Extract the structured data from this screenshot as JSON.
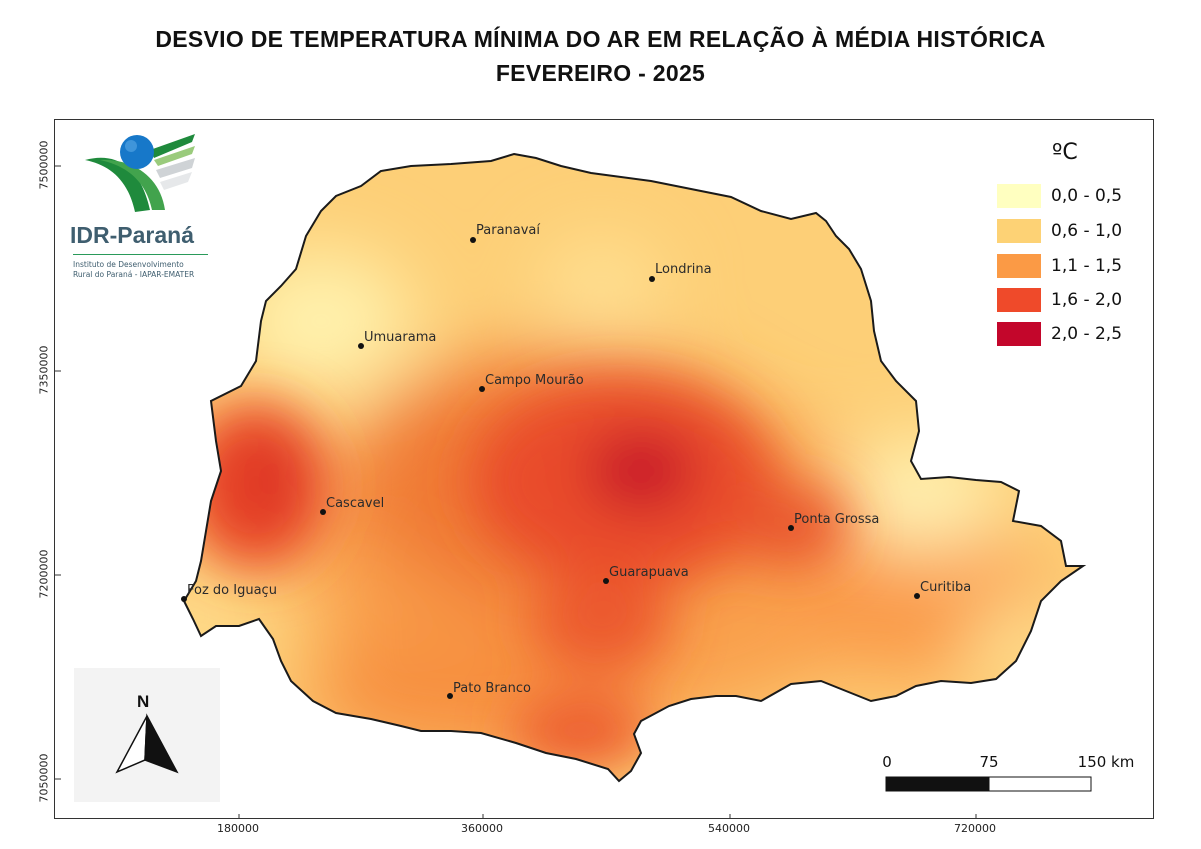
{
  "title": {
    "line1": "DESVIO DE TEMPERATURA MÍNIMA DO AR EM RELAÇÃO À MÉDIA HISTÓRICA",
    "line2": "FEVEREIRO - 2025"
  },
  "logo": {
    "name": "IDR-Paraná",
    "subtitle_line1": "Instituto de Desenvolvimento",
    "subtitle_line2": "Rural do Paraná - IAPAR-EMATER"
  },
  "axes": {
    "y_ticks": [
      "7500000",
      "7350000",
      "7200000",
      "7050000"
    ],
    "x_ticks": [
      "180000",
      "360000",
      "540000",
      "720000"
    ]
  },
  "legend": {
    "title": "ºC",
    "items": [
      {
        "label": "0,0 - 0,5",
        "color": "#ffffc0"
      },
      {
        "label": "0,6 - 1,0",
        "color": "#fdd275"
      },
      {
        "label": "1,1 - 1,5",
        "color": "#fb9a45"
      },
      {
        "label": "1,6 - 2,0",
        "color": "#ef4a2a"
      },
      {
        "label": "2,0 - 2,5",
        "color": "#c3062b"
      }
    ]
  },
  "cities": [
    {
      "name": "Paranavaí"
    },
    {
      "name": "Londrina"
    },
    {
      "name": "Umuarama"
    },
    {
      "name": "Campo Mourão"
    },
    {
      "name": "Cascavel"
    },
    {
      "name": "Ponta Grossa"
    },
    {
      "name": "Guarapuava"
    },
    {
      "name": "Foz do Iguaçu"
    },
    {
      "name": "Curitiba"
    },
    {
      "name": "Pato Branco"
    }
  ],
  "north_arrow": {
    "letter": "N"
  },
  "scale_bar": {
    "labels": [
      "0",
      "75",
      "150 km"
    ]
  }
}
